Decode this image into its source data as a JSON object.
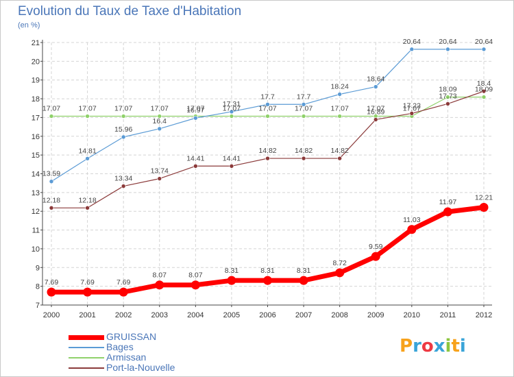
{
  "chart_data": {
    "type": "line",
    "title": "Evolution du Taux de Taxe d'Habitation",
    "subtitle": "(en %)",
    "x": [
      "2000",
      "2001",
      "2002",
      "2003",
      "2004",
      "2005",
      "2006",
      "2007",
      "2008",
      "2009",
      "2010",
      "2011",
      "2012"
    ],
    "ylim": [
      7,
      21
    ],
    "yticks": [
      7,
      8,
      9,
      10,
      11,
      12,
      13,
      14,
      15,
      16,
      17,
      18,
      19,
      20,
      21
    ],
    "grid": true,
    "legend_position": "bottom-left",
    "series": [
      {
        "name": "GRUISSAN",
        "color": "#ff0000",
        "values": [
          7.69,
          7.69,
          7.69,
          8.07,
          8.07,
          8.31,
          8.31,
          8.31,
          8.72,
          9.59,
          11.03,
          11.97,
          12.21
        ],
        "labels": [
          "7.69",
          "7.69",
          "7.69",
          "8.07",
          "8.07",
          "8.31",
          "8.31",
          "8.31",
          "8.72",
          "9.59",
          "11.03",
          "11.97",
          "12.21"
        ]
      },
      {
        "name": "Bages",
        "color": "#5b9bd5",
        "values": [
          13.59,
          14.81,
          15.96,
          16.4,
          16.97,
          17.31,
          17.7,
          17.7,
          18.24,
          18.64,
          20.64,
          20.64,
          20.64
        ],
        "labels": [
          "13.59",
          "14.81",
          "15.96",
          "16.4",
          "16.97",
          "17.31",
          "17.7",
          "17.7",
          "18.24",
          "18.64",
          "20.64",
          "20.64",
          "20.64"
        ]
      },
      {
        "name": "Armissan",
        "color": "#8fd16a",
        "values": [
          17.07,
          17.07,
          17.07,
          17.07,
          17.07,
          17.07,
          17.07,
          17.07,
          17.07,
          17.07,
          17.07,
          18.09,
          18.09
        ],
        "labels": [
          "17.07",
          "17.07",
          "17.07",
          "17.07",
          "17.07",
          "17.07",
          "17.07",
          "17.07",
          "17.07",
          "17.07",
          "17.07",
          "18.09",
          "18.09"
        ]
      },
      {
        "name": "Port-la-Nouvelle",
        "color": "#8b3a3a",
        "values": [
          12.18,
          12.18,
          13.34,
          13.74,
          14.41,
          14.41,
          14.82,
          14.82,
          14.82,
          16.89,
          17.22,
          17.73,
          18.4
        ],
        "labels": [
          "12.18",
          "12.18",
          "13.34",
          "13.74",
          "14.41",
          "14.41",
          "14.82",
          "14.82",
          "14.82",
          "16.89",
          "17.22",
          "17.73",
          "18.4"
        ]
      }
    ]
  },
  "logo": {
    "letters": [
      "P",
      "r",
      "o",
      "x",
      "i",
      "t",
      "i"
    ],
    "colors": [
      "#f7a21b",
      "#3aa4d8",
      "#ee3a43",
      "#3aa4d8",
      "#8cc63f",
      "#f7a21b",
      "#3aa4d8"
    ]
  }
}
